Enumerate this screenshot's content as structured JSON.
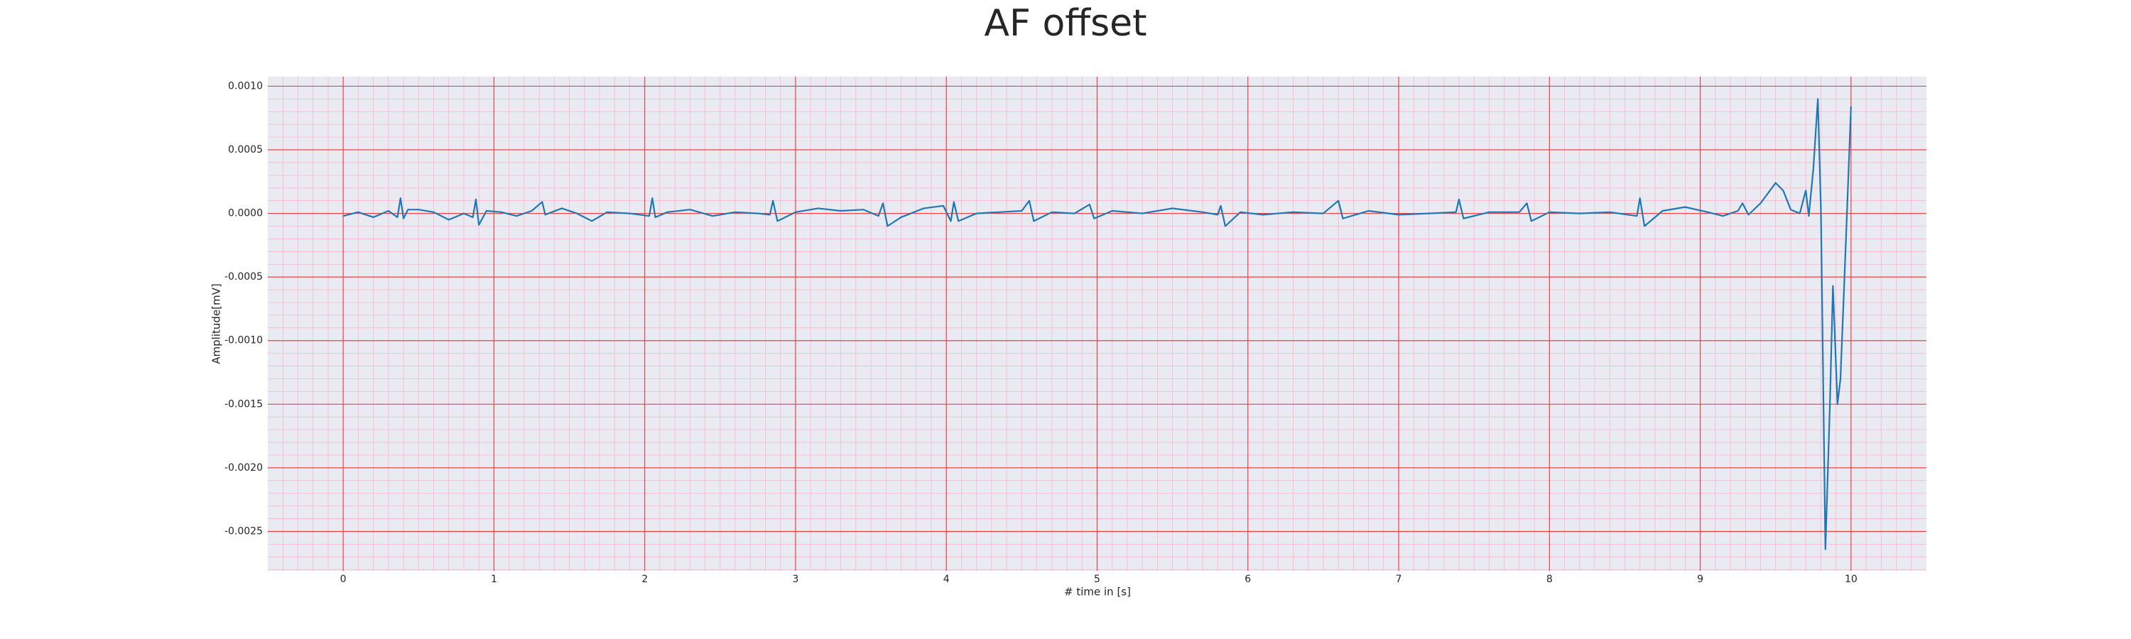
{
  "chart_data": {
    "type": "line",
    "title": "AF offset",
    "x_label": "# time in [s]",
    "y_label": "Amplitude[mV]",
    "xlim": [
      -0.5,
      10.5
    ],
    "xticks": [
      0,
      1,
      2,
      3,
      4,
      5,
      6,
      7,
      8,
      9,
      10
    ],
    "ylim": [
      -0.00281,
      0.001075
    ],
    "yticks": [
      {
        "value": 0.001,
        "label": "0.0010"
      },
      {
        "value": 0.0005,
        "label": "0.0005"
      },
      {
        "value": 0,
        "label": "0.0000"
      },
      {
        "value": -0.0005,
        "label": "-0.0005"
      },
      {
        "value": -0.001,
        "label": "-0.0010"
      },
      {
        "value": -0.0015,
        "label": "-0.0015"
      },
      {
        "value": -0.002,
        "label": "-0.0020"
      },
      {
        "value": -0.0025,
        "label": "-0.0025"
      }
    ],
    "grid": true,
    "grid_color": "#f04040",
    "minor_grid_color": "#f5b8c8",
    "background": "#eaeaf2",
    "series": [
      {
        "color": "#1f77b4",
        "x": [
          0,
          0.1,
          0.2,
          0.3,
          0.36,
          0.38,
          0.4,
          0.43,
          0.5,
          0.6,
          0.7,
          0.8,
          0.86,
          0.88,
          0.9,
          0.95,
          1.05,
          1.15,
          1.25,
          1.32,
          1.34,
          1.45,
          1.55,
          1.65,
          1.75,
          1.9,
          2.03,
          2.05,
          2.07,
          2.15,
          2.3,
          2.45,
          2.6,
          2.75,
          2.83,
          2.85,
          2.88,
          3.0,
          3.15,
          3.3,
          3.45,
          3.55,
          3.58,
          3.61,
          3.7,
          3.85,
          3.98,
          4.03,
          4.05,
          4.08,
          4.2,
          4.35,
          4.5,
          4.55,
          4.58,
          4.7,
          4.85,
          4.95,
          4.98,
          5.1,
          5.3,
          5.5,
          5.7,
          5.8,
          5.82,
          5.85,
          5.95,
          6.1,
          6.3,
          6.5,
          6.6,
          6.63,
          6.8,
          7.0,
          7.2,
          7.38,
          7.4,
          7.43,
          7.6,
          7.8,
          7.85,
          7.88,
          8.0,
          8.2,
          8.4,
          8.58,
          8.6,
          8.63,
          8.75,
          8.9,
          9.05,
          9.15,
          9.25,
          9.28,
          9.32,
          9.4,
          9.5,
          9.55,
          9.6,
          9.66,
          9.7,
          9.72,
          9.75,
          9.78,
          9.8,
          9.83,
          9.86,
          9.88,
          9.91,
          9.93,
          9.96,
          10.0
        ],
        "values": [
          -2e-05,
          1e-05,
          -3e-05,
          2e-05,
          -3e-05,
          0.00012,
          -4e-05,
          3e-05,
          3e-05,
          1e-05,
          -5e-05,
          0.0,
          -3e-05,
          0.00011,
          -9e-05,
          2e-05,
          1e-05,
          -2e-05,
          2e-05,
          9e-05,
          -1e-05,
          4e-05,
          0.0,
          -6e-05,
          1e-05,
          0.0,
          -2e-05,
          0.00012,
          -3e-05,
          1e-05,
          3e-05,
          -2e-05,
          1e-05,
          0.0,
          -1e-05,
          0.0001,
          -6e-05,
          1e-05,
          4e-05,
          2e-05,
          3e-05,
          -2e-05,
          8e-05,
          -0.0001,
          -3e-05,
          4e-05,
          6e-05,
          -6e-05,
          9e-05,
          -6e-05,
          0.0,
          1e-05,
          2e-05,
          0.0001,
          -6e-05,
          1e-05,
          0.0,
          7e-05,
          -4e-05,
          2e-05,
          0.0,
          4e-05,
          1e-05,
          -1e-05,
          6e-05,
          -0.0001,
          1e-05,
          -1e-05,
          1e-05,
          0.0,
          0.0001,
          -4e-05,
          2e-05,
          -1e-05,
          0.0,
          1e-05,
          0.00011,
          -4e-05,
          1e-05,
          1e-05,
          8e-05,
          -6e-05,
          1e-05,
          0.0,
          1e-05,
          -2e-05,
          0.00012,
          -0.0001,
          2e-05,
          5e-05,
          1e-05,
          -2e-05,
          2e-05,
          8e-05,
          -1e-05,
          8e-05,
          0.00024,
          0.00018,
          3e-05,
          0.0,
          0.00018,
          -2e-05,
          0.00035,
          0.0009,
          5e-05,
          -0.00264,
          -0.0015,
          -0.00057,
          -0.0015,
          -0.0013,
          -0.0004,
          0.00084
        ]
      }
    ]
  }
}
